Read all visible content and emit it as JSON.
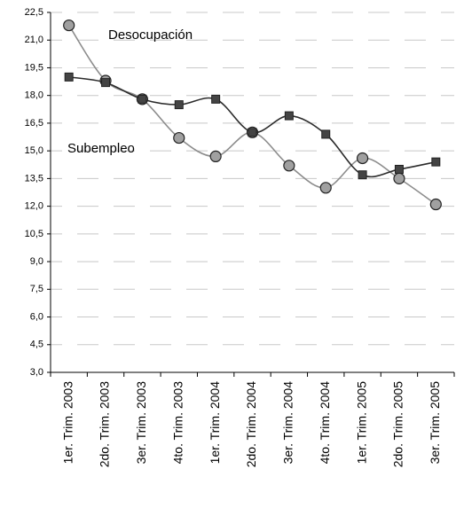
{
  "chart_data": {
    "type": "line",
    "categories": [
      "1er. Trim. 2003",
      "2do. Trim. 2003",
      "3er. Trim. 2003",
      "4to. Trim. 2003",
      "1er. Trim. 2004",
      "2do. Trim. 2004",
      "3er. Trim. 2004",
      "4to. Trim. 2004",
      "1er. Trim. 2005",
      "2do. Trim. 2005",
      "3er. Trim. 2005"
    ],
    "series": [
      {
        "name": "Desocupación",
        "color": "#8c8c8c",
        "marker": "circle",
        "values": [
          21.8,
          18.8,
          17.8,
          15.7,
          14.7,
          16.0,
          14.2,
          13.0,
          14.6,
          13.5,
          12.1
        ]
      },
      {
        "name": "Subempleo",
        "color": "#2b2b2b",
        "marker": "square",
        "values": [
          19.0,
          18.7,
          17.8,
          17.5,
          17.8,
          16.0,
          16.9,
          15.9,
          13.7,
          14.0,
          14.4
        ]
      }
    ],
    "ylim": [
      3.0,
      22.5
    ],
    "yticks": [
      {
        "value": 3.0,
        "label": "3,0"
      },
      {
        "value": 4.5,
        "label": "4,5"
      },
      {
        "value": 6.0,
        "label": "6,0"
      },
      {
        "value": 7.5,
        "label": "7,5"
      },
      {
        "value": 9.0,
        "label": "9,0"
      },
      {
        "value": 10.5,
        "label": "10,5"
      },
      {
        "value": 12.0,
        "label": "12,0"
      },
      {
        "value": 13.5,
        "label": "13,5"
      },
      {
        "value": 15.0,
        "label": "15,0"
      },
      {
        "value": 16.5,
        "label": "16,5"
      },
      {
        "value": 18.0,
        "label": "18,0"
      },
      {
        "value": 19.5,
        "label": "19,5"
      },
      {
        "value": 21.0,
        "label": "21,0"
      },
      {
        "value": 22.5,
        "label": "22,5"
      }
    ],
    "grid": true
  }
}
